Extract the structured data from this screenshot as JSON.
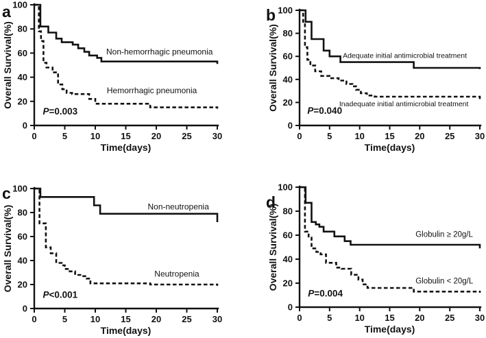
{
  "figure": {
    "background_color": "#ffffff",
    "line_color": "#111111"
  },
  "chart_data": [
    {
      "panel": "a",
      "type": "line",
      "subtype": "kaplan-meier-step",
      "xlabel": "Time(days)",
      "ylabel": "Overall Survival(%)",
      "xlim": [
        0,
        30
      ],
      "ylim": [
        0,
        100
      ],
      "xticks": [
        0,
        5,
        10,
        15,
        20,
        25,
        30
      ],
      "yticks": [
        0,
        20,
        40,
        60,
        80,
        100
      ],
      "grid": false,
      "legend_position": "inline-annotations",
      "annotation": {
        "text": "P=0.003",
        "italic_prefix": "P",
        "x": 1.4,
        "y": 9
      },
      "series": [
        {
          "name": "Non-hemorrhagic pneumonia",
          "line_style": "solid",
          "label_x": 11.8,
          "label_y": 61,
          "points": [
            [
              0,
              100
            ],
            [
              1,
              82
            ],
            [
              2.3,
              77
            ],
            [
              3.6,
              72
            ],
            [
              4.5,
              69
            ],
            [
              6.3,
              67
            ],
            [
              7.2,
              64
            ],
            [
              8.2,
              61
            ],
            [
              9,
              58
            ],
            [
              10.3,
              56
            ],
            [
              11,
              53
            ],
            [
              30,
              51
            ]
          ]
        },
        {
          "name": "Hemorrhagic pneumonia",
          "line_style": "dashed",
          "label_x": 11.9,
          "label_y": 29,
          "points": [
            [
              0,
              100
            ],
            [
              0.75,
              78
            ],
            [
              1.1,
              70
            ],
            [
              1.5,
              52
            ],
            [
              2,
              48
            ],
            [
              3,
              44
            ],
            [
              3.9,
              34
            ],
            [
              4.6,
              30
            ],
            [
              5.3,
              27
            ],
            [
              6.2,
              26
            ],
            [
              9,
              22
            ],
            [
              10,
              18
            ],
            [
              19,
              15
            ],
            [
              30,
              14
            ]
          ]
        }
      ]
    },
    {
      "panel": "b",
      "type": "line",
      "subtype": "kaplan-meier-step",
      "xlabel": "Time(days)",
      "ylabel": "Overall Survival(%)",
      "xlim": [
        0,
        30
      ],
      "ylim": [
        0,
        100
      ],
      "xticks": [
        0,
        5,
        10,
        15,
        20,
        25,
        30
      ],
      "yticks": [
        0,
        20,
        40,
        60,
        80,
        100
      ],
      "grid": false,
      "legend_position": "inline-annotations",
      "annotation": {
        "text": "P=0.040",
        "italic_prefix": "P",
        "x": 1.3,
        "y": 10
      },
      "series": [
        {
          "name": "Adequate initial antimicrobial treatment",
          "line_style": "solid",
          "label_x": 7.2,
          "label_y": 61,
          "points": [
            [
              0,
              100
            ],
            [
              1,
              90
            ],
            [
              2,
              75
            ],
            [
              4,
              65
            ],
            [
              5,
              60
            ],
            [
              6.8,
              55
            ],
            [
              19,
              50
            ],
            [
              30,
              49
            ]
          ]
        },
        {
          "name": "Inadequate initial antimicrobial treatment",
          "line_style": "dashed",
          "label_x": 6.6,
          "label_y": 19,
          "points": [
            [
              0,
              100
            ],
            [
              0.6,
              90
            ],
            [
              0.9,
              68
            ],
            [
              1.3,
              57
            ],
            [
              1.8,
              52
            ],
            [
              2.6,
              47
            ],
            [
              3.6,
              43
            ],
            [
              5,
              41
            ],
            [
              6.5,
              39
            ],
            [
              7.8,
              36
            ],
            [
              8.8,
              34
            ],
            [
              9.4,
              31
            ],
            [
              10.2,
              28
            ],
            [
              11.2,
              26
            ],
            [
              12.5,
              25
            ],
            [
              30,
              23
            ]
          ]
        }
      ]
    },
    {
      "panel": "c",
      "type": "line",
      "subtype": "kaplan-meier-step",
      "xlabel": "Time(days)",
      "ylabel": "Overall Survival(%)",
      "xlim": [
        0,
        30
      ],
      "ylim": [
        0,
        100
      ],
      "xticks": [
        0,
        5,
        10,
        15,
        20,
        25,
        30
      ],
      "yticks": [
        0,
        20,
        40,
        60,
        80,
        100
      ],
      "grid": false,
      "legend_position": "inline-annotations",
      "annotation": {
        "text": "P<0.001",
        "italic_prefix": "P",
        "x": 1.4,
        "y": 9
      },
      "series": [
        {
          "name": "Non-neutropenia",
          "line_style": "solid",
          "label_x": 18.6,
          "label_y": 85,
          "points": [
            [
              0,
              100
            ],
            [
              1,
              93
            ],
            [
              9.8,
              86
            ],
            [
              10.8,
              79
            ],
            [
              30,
              72
            ]
          ]
        },
        {
          "name": "Neutropenia",
          "line_style": "dashed",
          "label_x": 19.7,
          "label_y": 29,
          "points": [
            [
              0,
              100
            ],
            [
              0.85,
              71
            ],
            [
              1.9,
              51
            ],
            [
              2.7,
              46
            ],
            [
              3.6,
              38
            ],
            [
              4.5,
              36
            ],
            [
              5,
              33
            ],
            [
              5.8,
              31
            ],
            [
              6.7,
              28
            ],
            [
              7.7,
              27
            ],
            [
              8.6,
              25
            ],
            [
              9.2,
              21
            ],
            [
              19,
              20
            ],
            [
              30,
              19
            ]
          ]
        }
      ]
    },
    {
      "panel": "d",
      "type": "line",
      "subtype": "kaplan-meier-step",
      "xlabel": "Time(days)",
      "ylabel": "Overall Survival(%)",
      "xlim": [
        0,
        30
      ],
      "ylim": [
        0,
        100
      ],
      "xticks": [
        0,
        5,
        10,
        15,
        20,
        25,
        30
      ],
      "yticks": [
        0,
        20,
        40,
        60,
        80,
        100
      ],
      "grid": false,
      "legend_position": "inline-annotations",
      "annotation": {
        "text": "P=0.004",
        "italic_prefix": "P",
        "x": 1.4,
        "y": 9
      },
      "series": [
        {
          "name": "Globulin ≥ 20g/L",
          "line_style": "solid",
          "label_x": 19.3,
          "label_y": 61,
          "points": [
            [
              0,
              100
            ],
            [
              1,
              87
            ],
            [
              2,
              71
            ],
            [
              2.7,
              69
            ],
            [
              3.3,
              67
            ],
            [
              4,
              63
            ],
            [
              5.8,
              59
            ],
            [
              7.5,
              55
            ],
            [
              8.5,
              52
            ],
            [
              30,
              49
            ]
          ]
        },
        {
          "name": "Globulin < 20g/L",
          "line_style": "dashed",
          "label_x": 19.3,
          "label_y": 22,
          "points": [
            [
              0,
              100
            ],
            [
              0.9,
              63
            ],
            [
              1.5,
              58
            ],
            [
              2,
              49
            ],
            [
              2.8,
              46
            ],
            [
              3.5,
              44
            ],
            [
              4.4,
              37
            ],
            [
              6.1,
              33
            ],
            [
              7,
              32
            ],
            [
              8.6,
              27
            ],
            [
              9.8,
              23
            ],
            [
              10.5,
              19
            ],
            [
              11.3,
              16
            ],
            [
              19,
              13
            ],
            [
              30,
              12
            ]
          ]
        }
      ]
    }
  ]
}
